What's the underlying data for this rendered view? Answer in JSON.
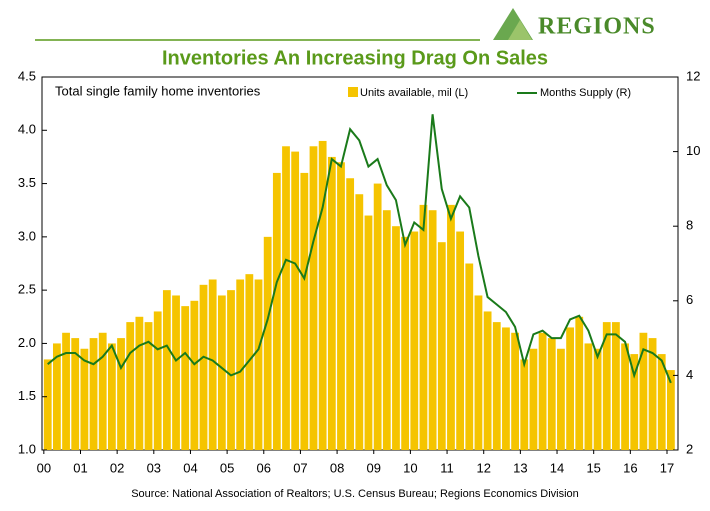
{
  "chart_data": {
    "type": "bar-line",
    "brand": "REGIONS",
    "title": "Inventories An Increasing Drag On Sales",
    "annotation": "Total single family home inventories",
    "source": "Source: National Association of Realtors; U.S. Census Bureau; Regions Economics Division",
    "x": [
      2000,
      2000.25,
      2000.5,
      2000.75,
      2001,
      2001.25,
      2001.5,
      2001.75,
      2002,
      2002.25,
      2002.5,
      2002.75,
      2003,
      2003.25,
      2003.5,
      2003.75,
      2004,
      2004.25,
      2004.5,
      2004.75,
      2005,
      2005.25,
      2005.5,
      2005.75,
      2006,
      2006.25,
      2006.5,
      2006.75,
      2007,
      2007.25,
      2007.5,
      2007.75,
      2008,
      2008.25,
      2008.5,
      2008.75,
      2009,
      2009.25,
      2009.5,
      2009.75,
      2010,
      2010.25,
      2010.5,
      2010.75,
      2011,
      2011.25,
      2011.5,
      2011.75,
      2012,
      2012.25,
      2012.5,
      2012.75,
      2013,
      2013.25,
      2013.5,
      2013.75,
      2014,
      2014.25,
      2014.5,
      2014.75,
      2015,
      2015.25,
      2015.5,
      2015.75,
      2016,
      2016.25,
      2016.5,
      2016.75,
      2017
    ],
    "series": [
      {
        "name": "Units available, mil (L)",
        "color": "#f5c400",
        "axis": "y",
        "values": [
          1.85,
          2.0,
          2.1,
          2.05,
          1.95,
          2.05,
          2.1,
          2.0,
          2.05,
          2.2,
          2.25,
          2.2,
          2.3,
          2.5,
          2.45,
          2.35,
          2.4,
          2.55,
          2.6,
          2.45,
          2.5,
          2.6,
          2.65,
          2.6,
          3.0,
          3.6,
          3.85,
          3.8,
          3.6,
          3.85,
          3.9,
          3.75,
          3.7,
          3.55,
          3.4,
          3.2,
          3.5,
          3.25,
          3.1,
          3.0,
          3.05,
          3.3,
          3.25,
          2.95,
          3.3,
          3.05,
          2.75,
          2.45,
          2.3,
          2.2,
          2.15,
          2.1,
          1.85,
          1.95,
          2.1,
          2.05,
          1.95,
          2.15,
          2.25,
          2.0,
          1.95,
          2.2,
          2.2,
          2.0,
          1.9,
          2.1,
          2.05,
          1.9,
          1.75
        ]
      },
      {
        "name": "Months Supply (R)",
        "color": "#1a7a1a",
        "axis": "y2",
        "values": [
          4.3,
          4.5,
          4.6,
          4.6,
          4.4,
          4.3,
          4.5,
          4.8,
          4.2,
          4.6,
          4.8,
          4.9,
          4.7,
          4.8,
          4.4,
          4.6,
          4.3,
          4.5,
          4.4,
          4.2,
          4.0,
          4.1,
          4.4,
          4.7,
          5.5,
          6.5,
          7.1,
          7.0,
          6.6,
          7.6,
          8.5,
          9.8,
          9.6,
          10.6,
          10.3,
          9.6,
          9.8,
          9.1,
          8.7,
          7.5,
          8.1,
          7.9,
          11.0,
          9.0,
          8.2,
          8.8,
          8.5,
          7.2,
          6.1,
          5.9,
          5.7,
          5.3,
          4.3,
          5.1,
          5.2,
          5.0,
          5.0,
          5.5,
          5.6,
          5.2,
          4.5,
          5.1,
          5.1,
          4.9,
          4.0,
          4.7,
          4.6,
          4.4,
          3.8
        ]
      }
    ],
    "xlim": [
      1999.95,
      2017.3
    ],
    "xticks": [
      {
        "value": 2000,
        "label": "00"
      },
      {
        "value": 2001,
        "label": "01"
      },
      {
        "value": 2002,
        "label": "02"
      },
      {
        "value": 2003,
        "label": "03"
      },
      {
        "value": 2004,
        "label": "04"
      },
      {
        "value": 2005,
        "label": "05"
      },
      {
        "value": 2006,
        "label": "06"
      },
      {
        "value": 2007,
        "label": "07"
      },
      {
        "value": 2008,
        "label": "08"
      },
      {
        "value": 2009,
        "label": "09"
      },
      {
        "value": 2010,
        "label": "10"
      },
      {
        "value": 2011,
        "label": "11"
      },
      {
        "value": 2012,
        "label": "12"
      },
      {
        "value": 2013,
        "label": "13"
      },
      {
        "value": 2014,
        "label": "14"
      },
      {
        "value": 2015,
        "label": "15"
      },
      {
        "value": 2016,
        "label": "16"
      },
      {
        "value": 2017,
        "label": "17"
      }
    ],
    "ylim": [
      1.0,
      4.5
    ],
    "yticks": [
      {
        "value": 1.0,
        "label": "1.0"
      },
      1.5,
      {
        "value": 2.0,
        "label": "2.0"
      },
      2.5,
      {
        "value": 3.0,
        "label": "3.0"
      },
      3.5,
      {
        "value": 4.0,
        "label": "4.0"
      },
      4.5
    ],
    "y2lim": [
      2,
      12
    ],
    "y2ticks": [
      2,
      4,
      6,
      8,
      10,
      12
    ]
  }
}
